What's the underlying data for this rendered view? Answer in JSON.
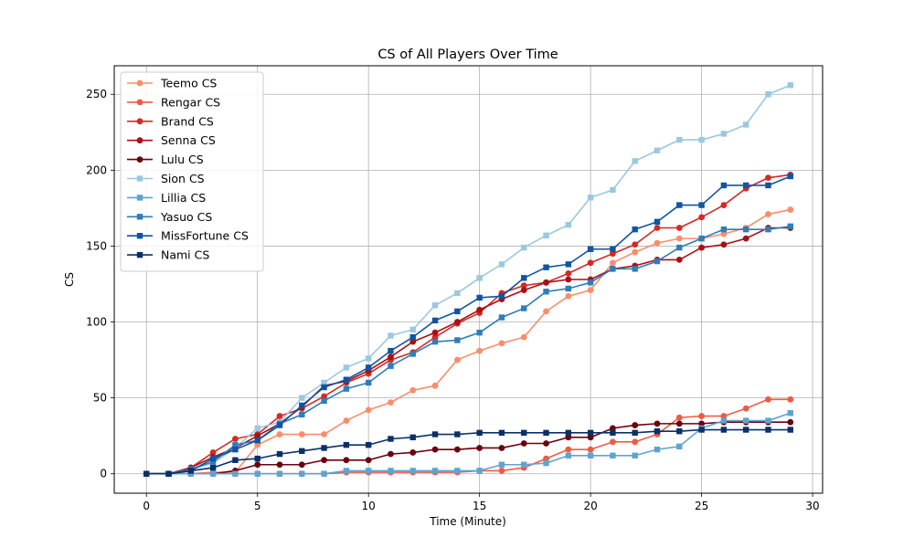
{
  "chart_data": {
    "type": "line",
    "title": "CS of All Players Over Time",
    "xlabel": "Time (Minute)",
    "ylabel": "CS",
    "xlim": [
      -1.45,
      30.45
    ],
    "ylim": [
      -12.8,
      268.8
    ],
    "x_ticks": [
      0,
      5,
      10,
      15,
      20,
      25,
      30
    ],
    "y_ticks": [
      0,
      50,
      100,
      150,
      200,
      250
    ],
    "grid": true,
    "legend_position": "top-left",
    "x": [
      0,
      1,
      2,
      3,
      4,
      5,
      6,
      7,
      8,
      9,
      10,
      11,
      12,
      13,
      14,
      15,
      16,
      17,
      18,
      19,
      20,
      21,
      22,
      23,
      24,
      25,
      26,
      27,
      28,
      29
    ],
    "series": [
      {
        "name": "Teemo CS",
        "marker": "circle",
        "color": "#fc8d6a",
        "values": [
          0,
          0,
          0,
          1,
          1,
          19,
          26,
          26,
          26,
          35,
          42,
          47,
          55,
          58,
          75,
          81,
          86,
          90,
          107,
          117,
          121,
          139,
          146,
          152,
          155,
          155,
          158,
          162,
          171,
          174
        ]
      },
      {
        "name": "Rengar CS",
        "marker": "circle",
        "color": "#ef5a43",
        "values": [
          0,
          0,
          0,
          0,
          0,
          0,
          0,
          0,
          0,
          1,
          1,
          1,
          1,
          1,
          1,
          2,
          2,
          4,
          10,
          16,
          16,
          21,
          21,
          26,
          37,
          38,
          38,
          43,
          49,
          49
        ]
      },
      {
        "name": "Brand CS",
        "marker": "circle",
        "color": "#d42a26",
        "values": [
          0,
          0,
          4,
          14,
          23,
          26,
          38,
          43,
          51,
          60,
          66,
          75,
          80,
          90,
          99,
          106,
          119,
          124,
          126,
          132,
          139,
          145,
          151,
          162,
          162,
          169,
          177,
          188,
          195,
          197
        ]
      },
      {
        "name": "Senna CS",
        "marker": "circle",
        "color": "#a91016",
        "values": [
          0,
          0,
          4,
          11,
          17,
          25,
          33,
          44,
          58,
          61,
          68,
          77,
          87,
          93,
          100,
          108,
          115,
          121,
          126,
          128,
          128,
          135,
          137,
          141,
          141,
          149,
          151,
          155,
          162,
          162
        ]
      },
      {
        "name": "Lulu CS",
        "marker": "circle",
        "color": "#6b0010",
        "values": [
          0,
          0,
          0,
          0,
          2,
          6,
          6,
          6,
          9,
          9,
          9,
          13,
          14,
          16,
          16,
          17,
          17,
          20,
          20,
          24,
          24,
          30,
          32,
          33,
          33,
          33,
          34,
          34,
          34,
          34
        ]
      },
      {
        "name": "Sion CS",
        "marker": "square",
        "color": "#9ac8e1",
        "values": [
          0,
          0,
          3,
          7,
          17,
          30,
          34,
          50,
          60,
          70,
          76,
          91,
          95,
          111,
          119,
          129,
          138,
          149,
          157,
          164,
          182,
          187,
          206,
          213,
          220,
          220,
          224,
          230,
          250,
          256
        ]
      },
      {
        "name": "Lillia CS",
        "marker": "square",
        "color": "#5fa4d0",
        "values": [
          0,
          0,
          0,
          0,
          0,
          0,
          0,
          0,
          0,
          2,
          2,
          2,
          2,
          2,
          2,
          2,
          6,
          6,
          7,
          12,
          12,
          12,
          12,
          16,
          18,
          30,
          35,
          35,
          35,
          40
        ]
      },
      {
        "name": "Yasuo CS",
        "marker": "square",
        "color": "#2f7dbb",
        "values": [
          0,
          0,
          3,
          8,
          19,
          22,
          33,
          39,
          48,
          56,
          60,
          71,
          79,
          87,
          88,
          93,
          103,
          109,
          120,
          122,
          126,
          135,
          135,
          140,
          149,
          155,
          161,
          161,
          161,
          163
        ]
      },
      {
        "name": "MissFortune CS",
        "marker": "square",
        "color": "#0f55a2",
        "values": [
          0,
          0,
          2,
          10,
          16,
          22,
          32,
          45,
          57,
          62,
          70,
          81,
          90,
          101,
          107,
          116,
          117,
          129,
          136,
          138,
          148,
          148,
          161,
          166,
          177,
          177,
          190,
          190,
          190,
          196
        ]
      },
      {
        "name": "Nami CS",
        "marker": "square",
        "color": "#0a306b",
        "values": [
          0,
          0,
          2,
          4,
          9,
          10,
          13,
          15,
          17,
          19,
          19,
          23,
          24,
          26,
          26,
          27,
          27,
          27,
          27,
          27,
          27,
          27,
          27,
          28,
          28,
          29,
          29,
          29,
          29,
          29
        ]
      }
    ]
  }
}
